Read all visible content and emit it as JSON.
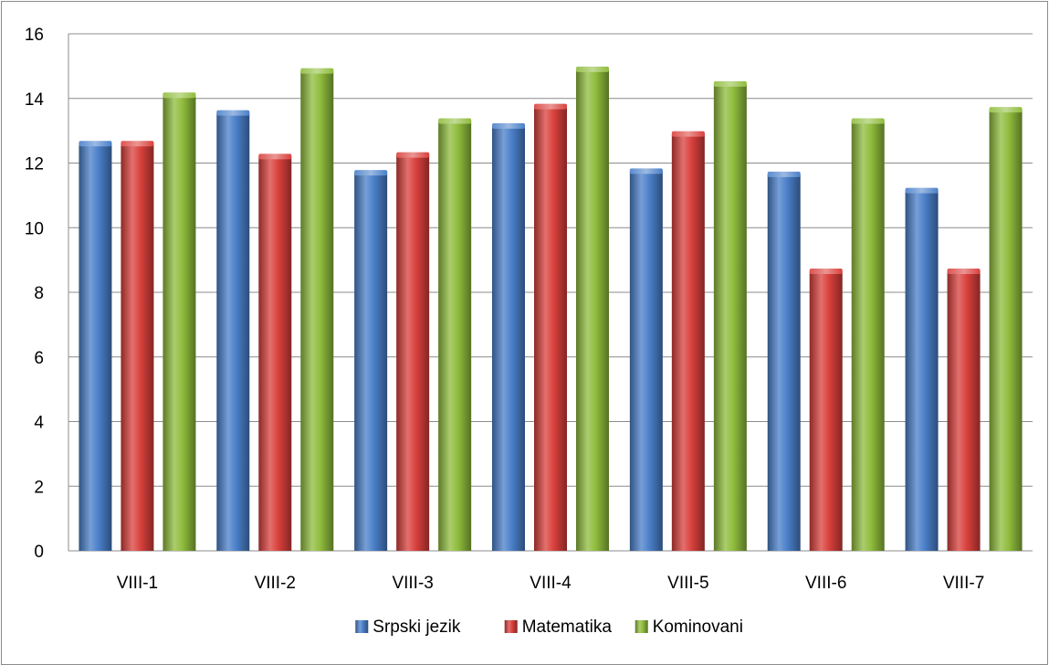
{
  "chart_data": {
    "type": "bar",
    "categories": [
      "VIII-1",
      "VIII-2",
      "VIII-3",
      "VIII-4",
      "VIII-5",
      "VIII-6",
      "VIII-7"
    ],
    "series": [
      {
        "name": "Srpski jezik",
        "color": "#4a7fc9",
        "values": [
          12.6,
          13.55,
          11.7,
          13.15,
          11.75,
          11.65,
          11.15
        ]
      },
      {
        "name": "Matematika",
        "color": "#d9403c",
        "values": [
          12.6,
          12.2,
          12.25,
          13.75,
          12.9,
          8.65,
          8.65
        ]
      },
      {
        "name": "Kominovani",
        "color": "#8fbc3c",
        "values": [
          14.1,
          14.85,
          13.3,
          14.9,
          14.45,
          13.3,
          13.65
        ]
      }
    ],
    "ylim": [
      0,
      16
    ],
    "yticks": [
      0,
      2,
      4,
      6,
      8,
      10,
      12,
      14,
      16
    ],
    "grid": true,
    "legend": "bottom",
    "title": "",
    "xlabel": "",
    "ylabel": ""
  }
}
